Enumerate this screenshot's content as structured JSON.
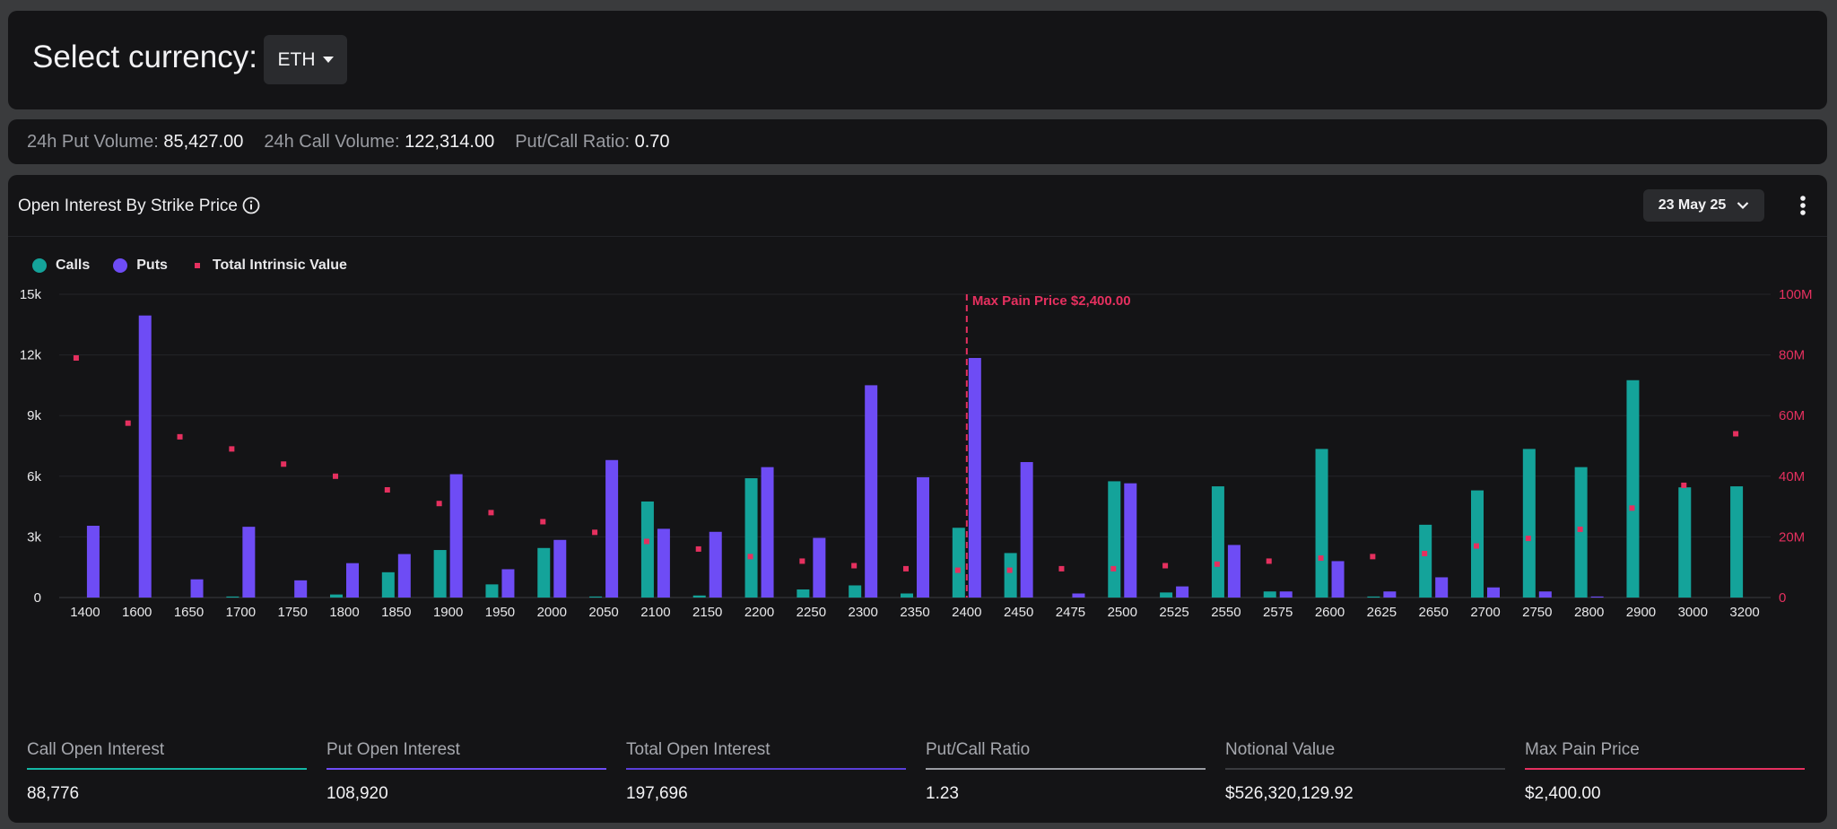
{
  "currency": {
    "label": "Select currency:",
    "selected": "ETH"
  },
  "volume": {
    "put_label": "24h Put Volume:",
    "put_value": "85,427.00",
    "call_label": "24h Call Volume:",
    "call_value": "122,314.00",
    "ratio_label": "Put/Call Ratio:",
    "ratio_value": "0.70"
  },
  "oi": {
    "title": "Open Interest By Strike Price",
    "info_icon": "info-circle-icon",
    "date": "23 May 25",
    "menu_icon": "kebab-menu-icon"
  },
  "legend": {
    "calls": "Calls",
    "puts": "Puts",
    "tiv": "Total Intrinsic Value"
  },
  "colors": {
    "calls": "#14a39a",
    "puts": "#6e4cf5",
    "tiv": "#e5305f",
    "bg": "#141416"
  },
  "chart_data": {
    "type": "bar",
    "categories": [
      "1400",
      "1600",
      "1650",
      "1700",
      "1750",
      "1800",
      "1850",
      "1900",
      "1950",
      "2000",
      "2050",
      "2100",
      "2150",
      "2200",
      "2250",
      "2300",
      "2350",
      "2400",
      "2450",
      "2475",
      "2500",
      "2525",
      "2550",
      "2575",
      "2600",
      "2625",
      "2650",
      "2700",
      "2750",
      "2800",
      "2900",
      "3000",
      "3200"
    ],
    "series": [
      {
        "name": "Calls",
        "axis": "left",
        "values": [
          0,
          0,
          0,
          50,
          0,
          150,
          1250,
          2350,
          650,
          2450,
          50,
          4750,
          100,
          5900,
          400,
          600,
          200,
          3450,
          2200,
          0,
          5750,
          250,
          5500,
          300,
          7350,
          50,
          3600,
          5300,
          7350,
          6450,
          10750,
          5450,
          5500
        ]
      },
      {
        "name": "Puts",
        "axis": "left",
        "values": [
          3550,
          13950,
          900,
          3500,
          850,
          1700,
          2150,
          6100,
          1400,
          2850,
          6800,
          3400,
          3250,
          6450,
          2950,
          10500,
          5950,
          11850,
          6700,
          200,
          5650,
          550,
          2600,
          300,
          1800,
          300,
          1000,
          500,
          300,
          50,
          0,
          0,
          0
        ]
      },
      {
        "name": "Total Intrinsic Value",
        "axis": "right",
        "type": "scatter",
        "values": [
          79,
          57.5,
          53,
          49,
          44,
          40,
          35.5,
          31,
          28,
          25,
          21.5,
          18.5,
          16,
          13.5,
          12,
          10.5,
          9.5,
          9,
          9,
          9.5,
          9.5,
          10.5,
          11,
          12,
          13,
          13.5,
          14.5,
          17,
          19.5,
          22.5,
          29.5,
          37,
          54
        ]
      }
    ],
    "title": "Open Interest By Strike Price",
    "y_left": {
      "range": [
        0,
        15000
      ],
      "ticks": [
        "0",
        "3k",
        "6k",
        "9k",
        "12k",
        "15k"
      ]
    },
    "y_right": {
      "range": [
        0,
        100
      ],
      "unit": "M",
      "ticks": [
        "0",
        "20M",
        "40M",
        "60M",
        "80M",
        "100M"
      ]
    },
    "marker": {
      "category": "2400",
      "label": "Max Pain Price $2,400.00"
    },
    "grid": true
  },
  "stats": [
    {
      "label": "Call Open Interest",
      "value": "88,776",
      "color": "#14b8a6"
    },
    {
      "label": "Put Open Interest",
      "value": "108,920",
      "color": "#6e4cf5"
    },
    {
      "label": "Total Open Interest",
      "value": "197,696",
      "color": "#5a3fd8"
    },
    {
      "label": "Put/Call Ratio",
      "value": "1.23",
      "color": "#9a9ca2"
    },
    {
      "label": "Notional Value",
      "value": "$526,320,129.92",
      "color": "#3a3b3f"
    },
    {
      "label": "Max Pain Price",
      "value": "$2,400.00",
      "color": "#e5305f"
    }
  ]
}
